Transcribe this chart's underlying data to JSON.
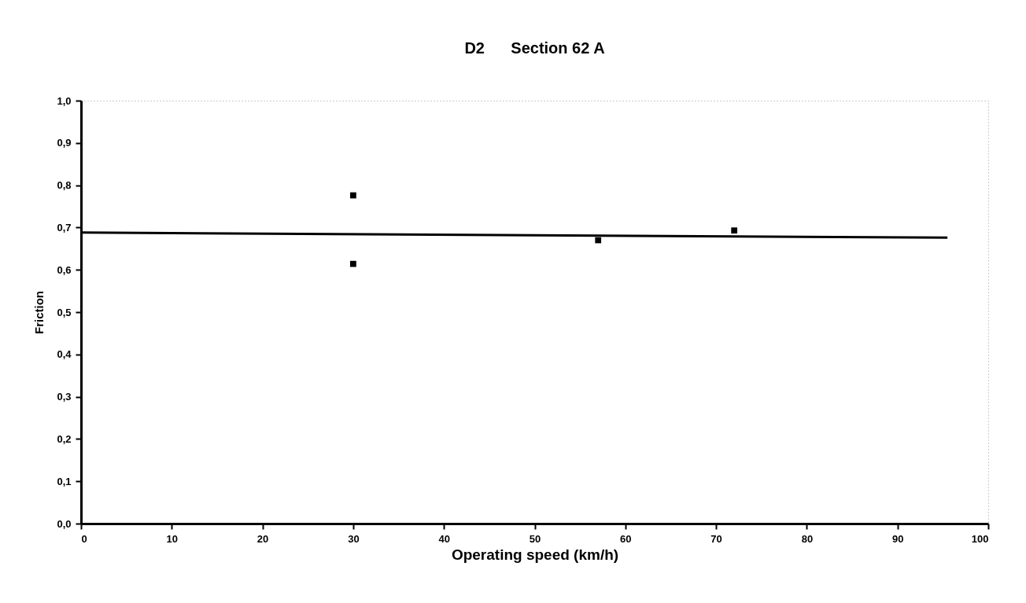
{
  "chart_data": {
    "type": "scatter",
    "title": "D2      Section 62 A",
    "xlabel": "Operating speed (km/h)",
    "ylabel": "Friction",
    "xlim": [
      0,
      100
    ],
    "xticks": [
      0,
      10,
      20,
      30,
      40,
      50,
      60,
      70,
      80,
      90,
      100
    ],
    "ylim": [
      0,
      1
    ],
    "yticks": [
      {
        "value": 0,
        "label": "0,0"
      },
      {
        "value": 0.1,
        "label": "0,1"
      },
      {
        "value": 0.2,
        "label": "0,2"
      },
      {
        "value": 0.3,
        "label": "0,3"
      },
      {
        "value": 0.4,
        "label": "0,4"
      },
      {
        "value": 0.5,
        "label": "0,5"
      },
      {
        "value": 0.6,
        "label": "0,6"
      },
      {
        "value": 0.7,
        "label": "0,7"
      },
      {
        "value": 0.8,
        "label": "0,8"
      },
      {
        "value": 0.9,
        "label": "0,9"
      },
      {
        "value": 1,
        "label": "1,0"
      }
    ],
    "series": [
      {
        "color": "#000000",
        "marker": "square",
        "x": [
          30,
          30,
          57,
          72
        ],
        "values": [
          0.776,
          0.614,
          0.67,
          0.693
        ]
      },
      {
        "type": "line",
        "color": "#000000",
        "marker": "none",
        "line_style": "solid",
        "x": [
          0,
          95.5
        ],
        "values": [
          0.688,
          0.676
        ]
      }
    ]
  }
}
